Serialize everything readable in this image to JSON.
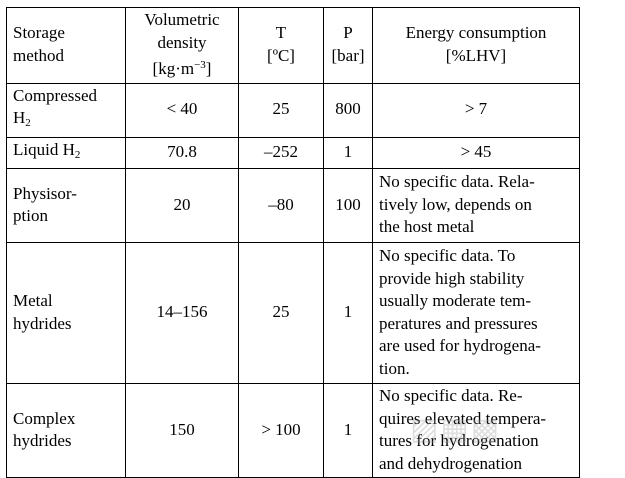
{
  "headers": {
    "method": [
      "Storage",
      "method"
    ],
    "density": [
      "Volumetric",
      "density",
      "[kg·m",
      "−3",
      "]"
    ],
    "temperature": [
      "T",
      "[ºC]"
    ],
    "pressure": [
      "P",
      "[bar]"
    ],
    "energy": [
      "Energy consumption",
      "[%LHV]"
    ]
  },
  "rows": [
    {
      "method": [
        "Compressed",
        "H",
        "2"
      ],
      "density": "< 40",
      "temperature": "25",
      "pressure": "800",
      "energy": "> 7"
    },
    {
      "method": [
        "Liquid H",
        "2"
      ],
      "density": "70.8",
      "temperature": "–252",
      "pressure": "1",
      "energy": "> 45"
    },
    {
      "method": [
        "Physisor-",
        "ption"
      ],
      "density": "20",
      "temperature": "–80",
      "pressure": "100",
      "energy": [
        "No specific data. Rela-",
        "tively low, depends on",
        "the host metal"
      ]
    },
    {
      "method": [
        "Metal",
        "hydrides"
      ],
      "density": "14–156",
      "temperature": "25",
      "pressure": "1",
      "energy": [
        "No specific data. To",
        "provide high stability",
        "usually moderate tem-",
        "peratures and pressures",
        "are used for hydrogena-",
        "tion."
      ]
    },
    {
      "method": [
        "Complex",
        "hydrides"
      ],
      "density": "150",
      "temperature": "> 100",
      "pressure": "1",
      "energy": [
        "No specific data. Re-",
        "quires elevated tempera-",
        "tures for hydrogenation",
        "and dehydrogenation"
      ]
    }
  ]
}
